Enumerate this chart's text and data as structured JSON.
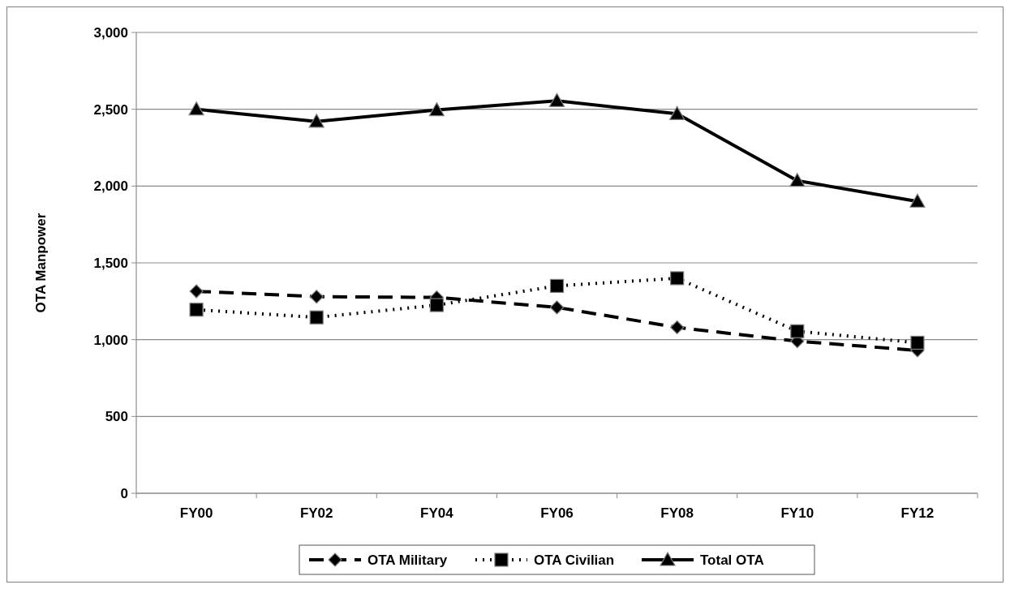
{
  "chart_data": {
    "type": "line",
    "ylabel": "OTA Manpower",
    "categories": [
      "FY00",
      "FY02",
      "FY04",
      "FY06",
      "FY08",
      "FY10",
      "FY12"
    ],
    "series": [
      {
        "name": "OTA Military",
        "color": "#000000",
        "line_style": "dashed",
        "marker": "diamond",
        "values": [
          1315,
          1280,
          1275,
          1210,
          1080,
          990,
          930
        ]
      },
      {
        "name": "OTA Civilian",
        "color": "#000000",
        "line_style": "dotted",
        "marker": "square",
        "values": [
          1195,
          1145,
          1225,
          1350,
          1400,
          1055,
          980
        ]
      },
      {
        "name": "Total OTA",
        "color": "#000000",
        "line_style": "solid",
        "marker": "triangle",
        "values": [
          2500,
          2420,
          2495,
          2555,
          2470,
          2035,
          1900
        ]
      }
    ],
    "ylim": [
      0,
      3000
    ],
    "yticks": [
      {
        "value": 0,
        "label": "0"
      },
      {
        "value": 500,
        "label": "500"
      },
      {
        "value": 1000,
        "label": "1,000"
      },
      {
        "value": 1500,
        "label": "1,500"
      },
      {
        "value": 2000,
        "label": "2,000"
      },
      {
        "value": 2500,
        "label": "2,500"
      },
      {
        "value": 3000,
        "label": "3,000"
      }
    ],
    "grid": "y",
    "legend": "bottom"
  }
}
